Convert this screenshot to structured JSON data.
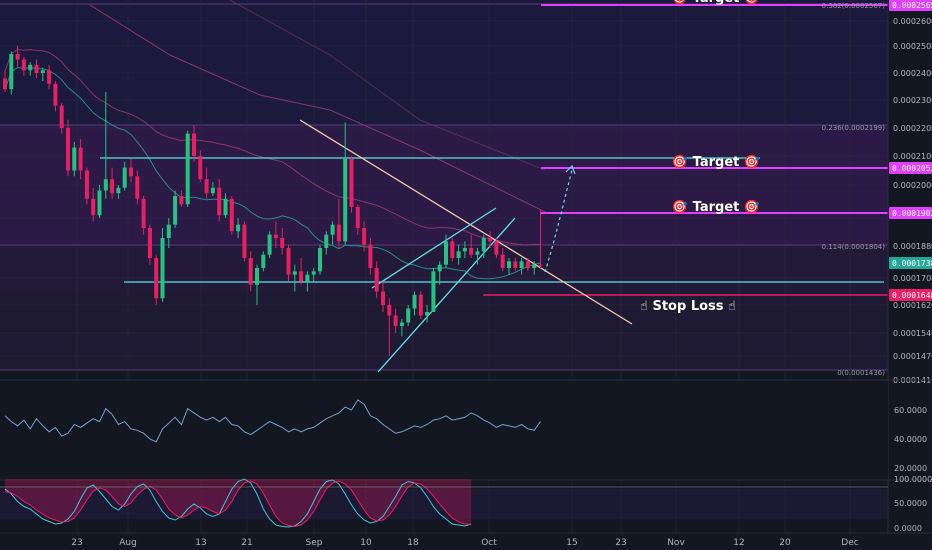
{
  "chart_data": {
    "type": "candlestick",
    "price_axis": {
      "ticks": [
        "0.0002600",
        "0.0002500",
        "0.0002400",
        "0.0002300",
        "0.0002200",
        "0.0002100",
        "0.0002000",
        "0.0001880",
        "0.0001700",
        "0.0001620",
        "0.0001540",
        "0.0001470",
        "0.0001410"
      ],
      "ylim": [
        0.00014,
        0.000266
      ]
    },
    "date_axis": {
      "ticks": [
        "23",
        "Aug",
        "13",
        "21",
        "Sep",
        "10",
        "18",
        "Oct",
        "15",
        "23",
        "Nov",
        "12",
        "20",
        "Dec"
      ]
    },
    "price_tags": [
      {
        "text": "0.0002565",
        "color": "#e040fb"
      },
      {
        "text": "0.0002053",
        "color": "#e040fb"
      },
      {
        "text": "0.0001903",
        "color": "#e040fb"
      },
      {
        "text": "0.0001738",
        "color": "#26a69a"
      },
      {
        "text": "0.0001648",
        "color": "#e91e63"
      }
    ],
    "fib_labels": [
      "0.382(0.0002567)",
      "0.236(0.0002199)",
      "0.114(0.0001804)",
      "0(0.0001436)"
    ],
    "annotations": [
      {
        "text": "🎯 Target 🎯",
        "color": "#e040fb"
      },
      {
        "text": "🎯 Target 🎯",
        "color": "#e040fb"
      },
      {
        "text": "🎯 Target 🎯",
        "color": "#e040fb"
      },
      {
        "text": "☝ Stop Loss ☝",
        "color": "#e91e63"
      }
    ],
    "rsi_axis": {
      "ticks": [
        "60.0000",
        "40.0000",
        "20.0000"
      ]
    },
    "stoch_axis": {
      "ticks": [
        "100.0000",
        "50.0000",
        "0.0000"
      ]
    },
    "candles": [
      [
        0.000238,
        0.000241,
        0.000233,
        0.000234
      ],
      [
        0.000234,
        0.000248,
        0.000232,
        0.000247
      ],
      [
        0.000247,
        0.00025,
        0.000242,
        0.000245
      ],
      [
        0.000245,
        0.000246,
        0.000239,
        0.000241
      ],
      [
        0.000241,
        0.000244,
        0.000239,
        0.000243
      ],
      [
        0.000243,
        0.000245,
        0.000238,
        0.00024
      ],
      [
        0.00024,
        0.000242,
        0.000237,
        0.000241
      ],
      [
        0.000241,
        0.000243,
        0.000234,
        0.000236
      ],
      [
        0.000236,
        0.000237,
        0.000226,
        0.000228
      ],
      [
        0.000228,
        0.000229,
        0.000218,
        0.00022
      ],
      [
        0.00022,
        0.000223,
        0.000203,
        0.000205
      ],
      [
        0.000205,
        0.000215,
        0.000203,
        0.000213
      ],
      [
        0.000213,
        0.000216,
        0.000202,
        0.000205
      ],
      [
        0.000205,
        0.000206,
        0.000193,
        0.000195
      ],
      [
        0.000195,
        0.000199,
        0.000187,
        0.000189
      ],
      [
        0.000189,
        0.0002,
        0.000188,
        0.000198
      ],
      [
        0.000198,
        0.000233,
        0.000195,
        0.000202
      ],
      [
        0.000202,
        0.000206,
        0.000195,
        0.000197
      ],
      [
        0.000197,
        0.0002,
        0.000195,
        0.000199
      ],
      [
        0.000199,
        0.000208,
        0.000198,
        0.000206
      ],
      [
        0.000206,
        0.000209,
        0.000201,
        0.000203
      ],
      [
        0.000203,
        0.000205,
        0.000193,
        0.000195
      ],
      [
        0.000195,
        0.000196,
        0.000183,
        0.000185
      ],
      [
        0.000185,
        0.000186,
        0.000174,
        0.000176
      ],
      [
        0.000176,
        0.000177,
        0.000162,
        0.000164
      ],
      [
        0.000164,
        0.000185,
        0.000163,
        0.000182
      ],
      [
        0.000182,
        0.000188,
        0.000179,
        0.000186
      ],
      [
        0.000186,
        0.000198,
        0.000185,
        0.000196
      ],
      [
        0.000196,
        0.000198,
        0.000192,
        0.000193
      ],
      [
        0.000193,
        0.000219,
        0.000192,
        0.000218
      ],
      [
        0.000218,
        0.000221,
        0.000208,
        0.00021
      ],
      [
        0.00021,
        0.000212,
        0.000201,
        0.000202
      ],
      [
        0.000202,
        0.000206,
        0.000195,
        0.000197
      ],
      [
        0.000197,
        0.000201,
        0.000196,
        0.000199
      ],
      [
        0.000199,
        0.000202,
        0.000187,
        0.000189
      ],
      [
        0.000189,
        0.000197,
        0.000188,
        0.000195
      ],
      [
        0.000195,
        0.000196,
        0.000183,
        0.000184
      ],
      [
        0.000184,
        0.000188,
        0.000182,
        0.000186
      ],
      [
        0.000186,
        0.000187,
        0.000175,
        0.000176
      ],
      [
        0.000176,
        0.000178,
        0.000166,
        0.000168
      ],
      [
        0.000168,
        0.000174,
        0.000162,
        0.000173
      ],
      [
        0.000173,
        0.000178,
        0.000172,
        0.000177
      ],
      [
        0.000177,
        0.000184,
        0.000176,
        0.000183
      ],
      [
        0.000183,
        0.000187,
        0.000179,
        0.000182
      ],
      [
        0.000182,
        0.000185,
        0.000177,
        0.000179
      ],
      [
        0.000179,
        0.00018,
        0.000169,
        0.000171
      ],
      [
        0.000171,
        0.000174,
        0.000166,
        0.000172
      ],
      [
        0.000172,
        0.000176,
        0.000168,
        0.000169
      ],
      [
        0.000169,
        0.000172,
        0.000166,
        0.000171
      ],
      [
        0.000171,
        0.000173,
        0.000169,
        0.000172
      ],
      [
        0.000172,
        0.00018,
        0.000171,
        0.000179
      ],
      [
        0.000179,
        0.000184,
        0.000177,
        0.000183
      ],
      [
        0.000183,
        0.000187,
        0.00018,
        0.000186
      ],
      [
        0.000186,
        0.000195,
        0.000179,
        0.000181
      ],
      [
        0.000181,
        0.000222,
        0.00018,
        0.000209
      ],
      [
        0.000209,
        0.00021,
        0.00019,
        0.000192
      ],
      [
        0.000192,
        0.000193,
        0.000183,
        0.000185
      ],
      [
        0.000185,
        0.000187,
        0.000178,
        0.00018
      ],
      [
        0.00018,
        0.000182,
        0.000171,
        0.000173
      ],
      [
        0.000173,
        0.000175,
        0.000164,
        0.000166
      ],
      [
        0.000166,
        0.000169,
        0.00016,
        0.000162
      ],
      [
        0.000162,
        0.000164,
        0.000147,
        0.000159
      ],
      [
        0.000159,
        0.000161,
        0.000154,
        0.000156
      ],
      [
        0.000156,
        0.000158,
        0.000153,
        0.000157
      ],
      [
        0.000157,
        0.000162,
        0.000156,
        0.000161
      ],
      [
        0.000161,
        0.000166,
        0.000159,
        0.000165
      ],
      [
        0.000165,
        0.000166,
        0.000158,
        0.000159
      ],
      [
        0.000159,
        0.000162,
        0.000157,
        0.00016
      ],
      [
        0.00016,
        0.000173,
        0.00016,
        0.000172
      ],
      [
        0.000172,
        0.000175,
        0.000168,
        0.000174
      ],
      [
        0.000174,
        0.000183,
        0.000173,
        0.000181
      ],
      [
        0.000181,
        0.000182,
        0.000175,
        0.000176
      ],
      [
        0.000176,
        0.00018,
        0.000174,
        0.000178
      ],
      [
        0.000178,
        0.000181,
        0.000176,
        0.000179
      ],
      [
        0.000179,
        0.000183,
        0.000176,
        0.000177
      ],
      [
        0.000177,
        0.000179,
        0.000174,
        0.000178
      ],
      [
        0.000178,
        0.000183,
        0.000176,
        0.000182
      ],
      [
        0.000182,
        0.000184,
        0.000179,
        0.000181
      ],
      [
        0.000181,
        0.000182,
        0.000176,
        0.000177
      ],
      [
        0.000177,
        0.000179,
        0.000172,
        0.000173
      ],
      [
        0.000173,
        0.000176,
        0.000171,
        0.000175
      ],
      [
        0.000175,
        0.000176,
        0.000172,
        0.000173
      ],
      [
        0.000173,
        0.000176,
        0.000171,
        0.000175
      ],
      [
        0.000175,
        0.000176,
        0.000172,
        0.000173
      ],
      [
        0.000173,
        0.000175,
        0.000171,
        0.000174
      ],
      [
        0.000174,
        0.000191,
        0.000173,
        0.0001738
      ]
    ],
    "rsi": [
      56,
      52,
      49,
      53,
      47,
      54,
      49,
      45,
      48,
      42,
      44,
      50,
      48,
      51,
      54,
      52,
      61,
      57,
      50,
      52,
      47,
      46,
      44,
      40,
      38,
      47,
      51,
      55,
      50,
      61,
      58,
      55,
      53,
      55,
      52,
      55,
      50,
      49,
      45,
      43,
      46,
      49,
      52,
      50,
      48,
      45,
      47,
      45,
      47,
      48,
      51,
      54,
      56,
      58,
      62,
      60,
      67,
      64,
      56,
      54,
      50,
      47,
      44,
      45,
      47,
      49,
      48,
      50,
      53,
      54,
      56,
      53,
      54,
      55,
      58,
      56,
      53,
      51,
      48,
      50,
      49,
      48,
      50,
      47,
      46,
      52
    ],
    "stoch_k": [
      80,
      70,
      55,
      45,
      40,
      30,
      20,
      15,
      10,
      12,
      20,
      35,
      60,
      82,
      88,
      75,
      60,
      45,
      38,
      50,
      70,
      85,
      90,
      78,
      55,
      35,
      22,
      18,
      25,
      40,
      50,
      42,
      30,
      25,
      30,
      55,
      80,
      95,
      100,
      92,
      70,
      40,
      20,
      8,
      5,
      4,
      6,
      15,
      30,
      55,
      80,
      95,
      98,
      90,
      70,
      48,
      30,
      18,
      12,
      15,
      25,
      45,
      65,
      88,
      95,
      92,
      82,
      65,
      45,
      30,
      20,
      10,
      8,
      6,
      10
    ],
    "stoch_d": [
      75,
      72,
      65,
      55,
      48,
      38,
      30,
      22,
      18,
      14,
      15,
      22,
      38,
      58,
      76,
      82,
      78,
      65,
      50,
      45,
      52,
      68,
      80,
      85,
      78,
      60,
      40,
      28,
      22,
      28,
      38,
      45,
      42,
      35,
      30,
      38,
      55,
      78,
      92,
      96,
      90,
      72,
      48,
      25,
      12,
      7,
      5,
      8,
      18,
      35,
      58,
      80,
      92,
      96,
      90,
      78,
      58,
      38,
      22,
      16,
      18,
      28,
      45,
      66,
      84,
      92,
      90,
      80,
      66,
      50,
      35,
      22,
      14,
      10,
      9
    ],
    "resistance_level": 0.0002083,
    "support_level": 0.0001715,
    "stop_loss": 0.0001648,
    "targets": [
      0.0002565,
      0.0002053,
      0.0001903
    ]
  }
}
